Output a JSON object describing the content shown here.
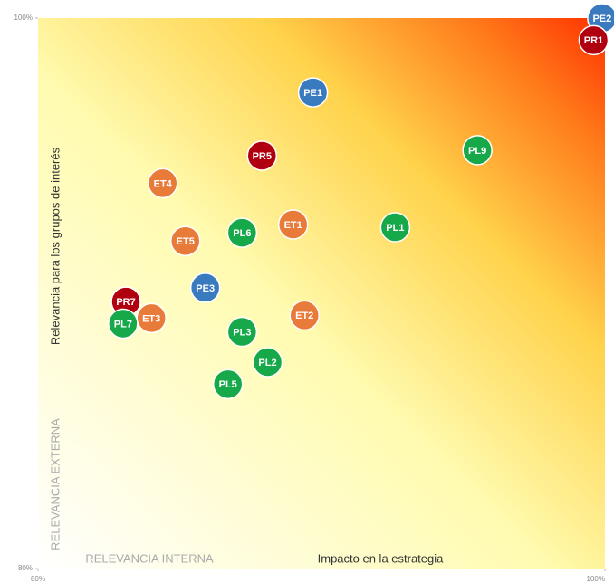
{
  "chart_data": {
    "type": "scatter",
    "x_label": "Impacto en la estrategia",
    "y_label": "Relevancia para los grupos de interés",
    "annotations": [
      "RELEVANCIA EXTERNA",
      "RELEVANCIA INTERNA"
    ],
    "xlim": [
      80,
      100
    ],
    "ylim": [
      80,
      100
    ],
    "xticks": [
      {
        "value": 80,
        "label": "80%"
      },
      {
        "value": 100,
        "label": "100%"
      }
    ],
    "yticks": [
      {
        "value": 80,
        "label": "80%"
      },
      {
        "value": 100,
        "label": "100%"
      }
    ],
    "points": [
      {
        "label": "PE2",
        "x": 99.9,
        "y": 100,
        "color": "#3a7abf"
      },
      {
        "label": "PR1",
        "x": 99.6,
        "y": 99.2,
        "color": "#b00010"
      },
      {
        "label": "PE1",
        "x": 89.7,
        "y": 97.3,
        "color": "#3a7abf"
      },
      {
        "label": "PL9",
        "x": 95.5,
        "y": 95.2,
        "color": "#17a84a"
      },
      {
        "label": "PR5",
        "x": 87.9,
        "y": 95.0,
        "color": "#b00010"
      },
      {
        "label": "ET4",
        "x": 84.4,
        "y": 94.0,
        "color": "#e87a3a"
      },
      {
        "label": "ET1",
        "x": 89.0,
        "y": 92.5,
        "color": "#e87a3a"
      },
      {
        "label": "PL1",
        "x": 92.6,
        "y": 92.4,
        "color": "#17a84a"
      },
      {
        "label": "PL6",
        "x": 87.2,
        "y": 92.2,
        "color": "#17a84a"
      },
      {
        "label": "ET5",
        "x": 85.2,
        "y": 91.9,
        "color": "#e87a3a"
      },
      {
        "label": "PE3",
        "x": 85.9,
        "y": 90.2,
        "color": "#3a7abf"
      },
      {
        "label": "PR7",
        "x": 83.1,
        "y": 89.7,
        "color": "#b00010"
      },
      {
        "label": "ET3",
        "x": 84.0,
        "y": 89.1,
        "color": "#e87a3a"
      },
      {
        "label": "PL7",
        "x": 83.0,
        "y": 88.9,
        "color": "#17a84a"
      },
      {
        "label": "ET2",
        "x": 89.4,
        "y": 89.2,
        "color": "#e87a3a"
      },
      {
        "label": "PL3",
        "x": 87.2,
        "y": 88.6,
        "color": "#17a84a"
      },
      {
        "label": "PL2",
        "x": 88.1,
        "y": 87.5,
        "color": "#17a84a"
      },
      {
        "label": "PL5",
        "x": 86.7,
        "y": 86.7,
        "color": "#17a84a"
      }
    ]
  }
}
